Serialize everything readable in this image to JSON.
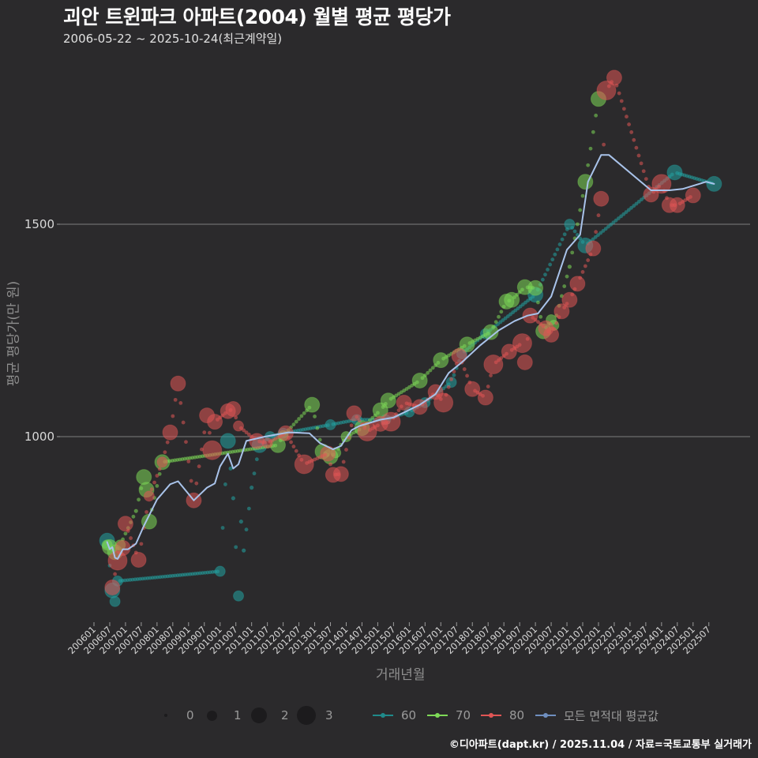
{
  "header": {
    "title": "괴안 트윈파크 아파트(2004) 월별 평균 평당가",
    "subtitle": "2006-05-22 ~ 2025-10-24(최근계약일)"
  },
  "footer": {
    "credit": "©디아파트(dapt.kr) / 2025.11.04 / 자료=국토교통부 실거래가"
  },
  "legend": {
    "size_title": "",
    "sizes": [
      {
        "label": "0",
        "radius": 2
      },
      {
        "label": "1",
        "radius": 6
      },
      {
        "label": "2",
        "radius": 9
      },
      {
        "label": "3",
        "radius": 12
      }
    ],
    "series": [
      {
        "label": "60",
        "color": "#1f8a8a"
      },
      {
        "label": "70",
        "color": "#7ed957"
      },
      {
        "label": "80",
        "color": "#e05555"
      },
      {
        "label": "모든 면적대 평균값",
        "color": "#7d9cc9"
      }
    ]
  },
  "colors": {
    "background": "#2b2a2c",
    "grid": "#6e6e6e",
    "s60": "#22a3a3",
    "s70": "#7ed957",
    "s80": "#e05555",
    "avg": "#a9c3ea"
  },
  "chart_data": {
    "type": "scatter",
    "title": "괴안 트윈파크 아파트(2004) 월별 평균 평당가",
    "subtitle": "2006-05-22 ~ 2025-10-24(최근계약일)",
    "xlabel": "거래년월",
    "ylabel": "평균 평당가(만 원)",
    "x_ticks": [
      "200601",
      "200607",
      "200701",
      "200707",
      "200801",
      "200807",
      "200901",
      "200907",
      "201001",
      "201007",
      "201101",
      "201107",
      "201201",
      "201207",
      "201301",
      "201307",
      "201401",
      "201407",
      "201501",
      "201507",
      "201601",
      "201607",
      "201701",
      "201707",
      "201801",
      "201807",
      "201901",
      "201907",
      "202001",
      "202007",
      "202101",
      "202107",
      "202201",
      "202207",
      "202301",
      "202307",
      "202401",
      "202407",
      "202501",
      "202507"
    ],
    "y_ticks": [
      1000,
      1500
    ],
    "ylim": [
      580,
      1870
    ],
    "grid": "horizontal",
    "legend_position": "bottom",
    "point_size_meaning": "거래건수 (0,1,2,3)",
    "series": [
      {
        "name": "60",
        "points": [
          [
            "2006-06",
            755,
            2
          ],
          [
            "2006-08",
            638,
            2
          ],
          [
            "2006-09",
            612,
            1
          ],
          [
            "2006-10",
            660,
            1
          ],
          [
            "2010-01",
            683,
            1
          ],
          [
            "2010-04",
            990,
            2
          ],
          [
            "2010-05",
            925,
            0
          ],
          [
            "2010-06",
            855,
            0
          ],
          [
            "2010-08",
            625,
            1
          ],
          [
            "2010-09",
            800,
            0
          ],
          [
            "2010-10",
            732,
            0
          ],
          [
            "2011-01",
            880,
            0
          ],
          [
            "2011-04",
            980,
            2
          ],
          [
            "2011-08",
            1000,
            1
          ],
          [
            "2012-01",
            1008,
            1
          ],
          [
            "2013-07",
            1028,
            1
          ],
          [
            "2014-05",
            1040,
            1
          ],
          [
            "2015-04",
            1040,
            1
          ],
          [
            "2016-01",
            1058,
            1
          ],
          [
            "2016-07",
            1080,
            1
          ],
          [
            "2017-05",
            1128,
            1
          ],
          [
            "2017-09",
            1195,
            1
          ],
          [
            "2018-06",
            1242,
            1
          ],
          [
            "2020-01",
            1334,
            2
          ],
          [
            "2021-02",
            1500,
            1
          ],
          [
            "2021-08",
            1450,
            2
          ],
          [
            "2024-06",
            1622,
            2
          ],
          [
            "2025-09",
            1595,
            2
          ]
        ]
      },
      {
        "name": "70",
        "points": [
          [
            "2006-06",
            745,
            1
          ],
          [
            "2006-07",
            740,
            2
          ],
          [
            "2006-09",
            728,
            2
          ],
          [
            "2006-11",
            745,
            1
          ],
          [
            "2007-05",
            825,
            0
          ],
          [
            "2007-08",
            905,
            2
          ],
          [
            "2007-09",
            875,
            2
          ],
          [
            "2007-10",
            800,
            2
          ],
          [
            "2008-03",
            940,
            2
          ],
          [
            "2011-11",
            980,
            2
          ],
          [
            "2012-01",
            1002,
            1
          ],
          [
            "2012-12",
            1075,
            2
          ],
          [
            "2013-04",
            965,
            2
          ],
          [
            "2013-07",
            953,
            2
          ],
          [
            "2013-09",
            962,
            1
          ],
          [
            "2014-01",
            1000,
            1
          ],
          [
            "2014-07",
            1020,
            2
          ],
          [
            "2015-02",
            1062,
            2
          ],
          [
            "2015-05",
            1085,
            2
          ],
          [
            "2016-05",
            1132,
            2
          ],
          [
            "2017-01",
            1180,
            2
          ],
          [
            "2017-11",
            1217,
            2
          ],
          [
            "2018-08",
            1246,
            2
          ],
          [
            "2019-02",
            1318,
            2
          ],
          [
            "2019-04",
            1322,
            2
          ],
          [
            "2019-09",
            1352,
            2
          ],
          [
            "2020-01",
            1350,
            2
          ],
          [
            "2020-04",
            1248,
            2
          ],
          [
            "2020-07",
            1275,
            1
          ],
          [
            "2020-08",
            1262,
            1
          ],
          [
            "2021-02",
            1400,
            0
          ],
          [
            "2021-08",
            1600,
            2
          ],
          [
            "2022-01",
            1795,
            2
          ]
        ]
      },
      {
        "name": "80",
        "points": [
          [
            "2006-08",
            645,
            2
          ],
          [
            "2006-10",
            708,
            3
          ],
          [
            "2006-12",
            738,
            2
          ],
          [
            "2007-01",
            795,
            2
          ],
          [
            "2007-06",
            710,
            2
          ],
          [
            "2007-10",
            860,
            1
          ],
          [
            "2008-03",
            940,
            1
          ],
          [
            "2008-06",
            1010,
            2
          ],
          [
            "2008-09",
            1125,
            2
          ],
          [
            "2009-03",
            850,
            2
          ],
          [
            "2009-08",
            1050,
            2
          ],
          [
            "2009-10",
            968,
            3
          ],
          [
            "2009-11",
            1035,
            2
          ],
          [
            "2010-04",
            1060,
            2
          ],
          [
            "2010-06",
            1065,
            2
          ],
          [
            "2010-08",
            1025,
            1
          ],
          [
            "2011-03",
            990,
            2
          ],
          [
            "2011-07",
            985,
            1
          ],
          [
            "2012-02",
            1008,
            2
          ],
          [
            "2012-09",
            935,
            3
          ],
          [
            "2013-06",
            960,
            2
          ],
          [
            "2013-08",
            910,
            2
          ],
          [
            "2013-11",
            912,
            2
          ],
          [
            "2014-04",
            1055,
            2
          ],
          [
            "2014-09",
            1012,
            3
          ],
          [
            "2015-02",
            1030,
            2
          ],
          [
            "2015-06",
            1035,
            3
          ],
          [
            "2015-11",
            1080,
            2
          ],
          [
            "2016-05",
            1070,
            2
          ],
          [
            "2016-11",
            1105,
            2
          ],
          [
            "2017-02",
            1080,
            3
          ],
          [
            "2017-08",
            1190,
            2
          ],
          [
            "2018-01",
            1112,
            2
          ],
          [
            "2018-06",
            1092,
            2
          ],
          [
            "2018-09",
            1170,
            3
          ],
          [
            "2019-03",
            1200,
            2
          ],
          [
            "2019-08",
            1220,
            3
          ],
          [
            "2019-09",
            1175,
            2
          ],
          [
            "2019-11",
            1285,
            2
          ],
          [
            "2020-05",
            1255,
            2
          ],
          [
            "2020-07",
            1240,
            2
          ],
          [
            "2020-11",
            1295,
            2
          ],
          [
            "2021-02",
            1322,
            2
          ],
          [
            "2021-05",
            1360,
            2
          ],
          [
            "2021-11",
            1443,
            2
          ],
          [
            "2022-02",
            1560,
            2
          ],
          [
            "2022-04",
            1815,
            3
          ],
          [
            "2022-07",
            1845,
            2
          ],
          [
            "2023-09",
            1570,
            2
          ],
          [
            "2024-01",
            1595,
            3
          ],
          [
            "2024-04",
            1545,
            2
          ],
          [
            "2024-07",
            1545,
            2
          ],
          [
            "2025-01",
            1568,
            2
          ]
        ]
      },
      {
        "name": "모든 면적대 평균값",
        "points": [
          [
            "2006-06",
            752
          ],
          [
            "2006-07",
            735
          ],
          [
            "2006-08",
            740
          ],
          [
            "2006-09",
            715
          ],
          [
            "2006-10",
            712
          ],
          [
            "2006-12",
            735
          ],
          [
            "2007-02",
            735
          ],
          [
            "2007-05",
            748
          ],
          [
            "2007-08",
            790
          ],
          [
            "2008-01",
            852
          ],
          [
            "2008-06",
            888
          ],
          [
            "2008-09",
            895
          ],
          [
            "2009-03",
            850
          ],
          [
            "2009-08",
            880
          ],
          [
            "2009-11",
            890
          ],
          [
            "2010-01",
            930
          ],
          [
            "2010-04",
            960
          ],
          [
            "2010-06",
            925
          ],
          [
            "2010-08",
            935
          ],
          [
            "2010-11",
            990
          ],
          [
            "2011-06",
            1000
          ],
          [
            "2012-03",
            1010
          ],
          [
            "2012-11",
            1008
          ],
          [
            "2013-03",
            985
          ],
          [
            "2013-08",
            970
          ],
          [
            "2013-11",
            978
          ],
          [
            "2014-03",
            1015
          ],
          [
            "2014-06",
            1025
          ],
          [
            "2015-02",
            1040
          ],
          [
            "2015-07",
            1045
          ],
          [
            "2016-05",
            1075
          ],
          [
            "2016-11",
            1100
          ],
          [
            "2017-04",
            1150
          ],
          [
            "2017-09",
            1175
          ],
          [
            "2018-04",
            1215
          ],
          [
            "2018-11",
            1250
          ],
          [
            "2019-05",
            1272
          ],
          [
            "2019-10",
            1285
          ],
          [
            "2020-02",
            1290
          ],
          [
            "2020-07",
            1330
          ],
          [
            "2021-01",
            1440
          ],
          [
            "2021-06",
            1475
          ],
          [
            "2021-09",
            1600
          ],
          [
            "2022-02",
            1663
          ],
          [
            "2022-05",
            1663
          ],
          [
            "2023-09",
            1580
          ],
          [
            "2024-04",
            1580
          ],
          [
            "2024-09",
            1583
          ],
          [
            "2025-06",
            1600
          ],
          [
            "2025-09",
            1595
          ]
        ]
      }
    ]
  },
  "axes": {
    "xlabel": "거래년월",
    "ylabel": "평균 평당가(만 원)",
    "y_tick_labels": [
      "1000",
      "1500"
    ]
  }
}
